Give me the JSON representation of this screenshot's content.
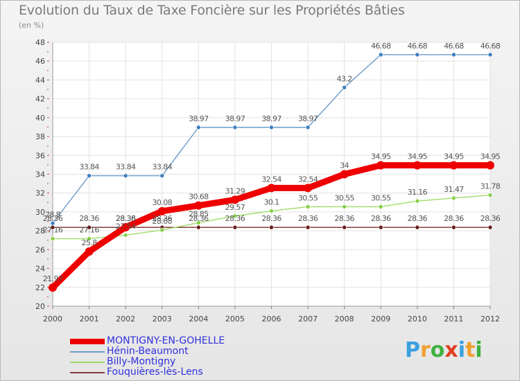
{
  "title": "Evolution du Taux de Taxe Foncière sur les Propriétés Bâties",
  "subtitle": "(en %)",
  "logo": {
    "text": "Proxiti",
    "letter_colors": [
      "#3aa0e0",
      "#f0a030",
      "#40b040",
      "#e04020",
      "#3aa0e0",
      "#f0a030",
      "#40b040"
    ]
  },
  "chart_data": {
    "type": "line",
    "x": [
      "2000",
      "2001",
      "2002",
      "2003",
      "2004",
      "2005",
      "2006",
      "2007",
      "2008",
      "2009",
      "2010",
      "2011",
      "2012"
    ],
    "ylim": [
      20,
      48
    ],
    "yticks": [
      20,
      22,
      24,
      26,
      28,
      30,
      32,
      34,
      36,
      38,
      40,
      42,
      44,
      46,
      48
    ],
    "grid": true,
    "legend_position": "bottom-left",
    "series": [
      {
        "name": "MONTIGNY-EN-GOHELLE",
        "color": "#ee0000",
        "text_color": "#3030dd",
        "values": [
          21.97,
          25.8,
          28.38,
          30.08,
          30.68,
          31.29,
          32.54,
          32.54,
          34,
          34.95,
          34.95,
          34.95,
          34.95
        ],
        "labels": [
          "21.97",
          "25.8",
          "28.38",
          "30.08",
          "30.68",
          "31.29",
          "32.54",
          "32.54",
          "34",
          "34.95",
          "34.95",
          "34.95",
          "34.95"
        ]
      },
      {
        "name": "Hénin-Beaumont",
        "color": "#6b9bc9",
        "text_color": "#3030dd",
        "values": [
          28.8,
          33.84,
          33.84,
          33.84,
          38.97,
          38.97,
          38.97,
          38.97,
          43.2,
          46.68,
          46.68,
          46.68,
          46.68
        ],
        "labels": [
          "28.8",
          "33.84",
          "33.84",
          "33.84",
          "38.97",
          "38.97",
          "38.97",
          "38.97",
          "43.2",
          "46.68",
          "46.68",
          "46.68",
          "46.68"
        ]
      },
      {
        "name": "Billy-Montigny",
        "color": "#9fdc66",
        "text_color": "#3030dd",
        "values": [
          27.16,
          27.16,
          27.54,
          28.08,
          28.85,
          29.57,
          30.1,
          30.55,
          30.55,
          30.55,
          31.16,
          31.47,
          31.78
        ],
        "labels": [
          "27.16",
          "27.16",
          "27.54",
          "28.08",
          "28.85",
          "29.57",
          "30.1",
          "30.55",
          "30.55",
          "30.55",
          "31.16",
          "31.47",
          "31.78"
        ]
      },
      {
        "name": "Fouquières-lès-Lens",
        "color": "#8a3a3a",
        "text_color": "#3030dd",
        "values": [
          28.36,
          28.36,
          28.36,
          28.36,
          28.36,
          28.36,
          28.36,
          28.36,
          28.36,
          28.36,
          28.36,
          28.36,
          28.36
        ],
        "labels": [
          "28.36",
          "28.36",
          "28.36",
          "28.36",
          "28.36",
          "28.36",
          "28.36",
          "28.36",
          "28.36",
          "28.36",
          "28.36",
          "28.36",
          "28.36"
        ]
      }
    ]
  }
}
